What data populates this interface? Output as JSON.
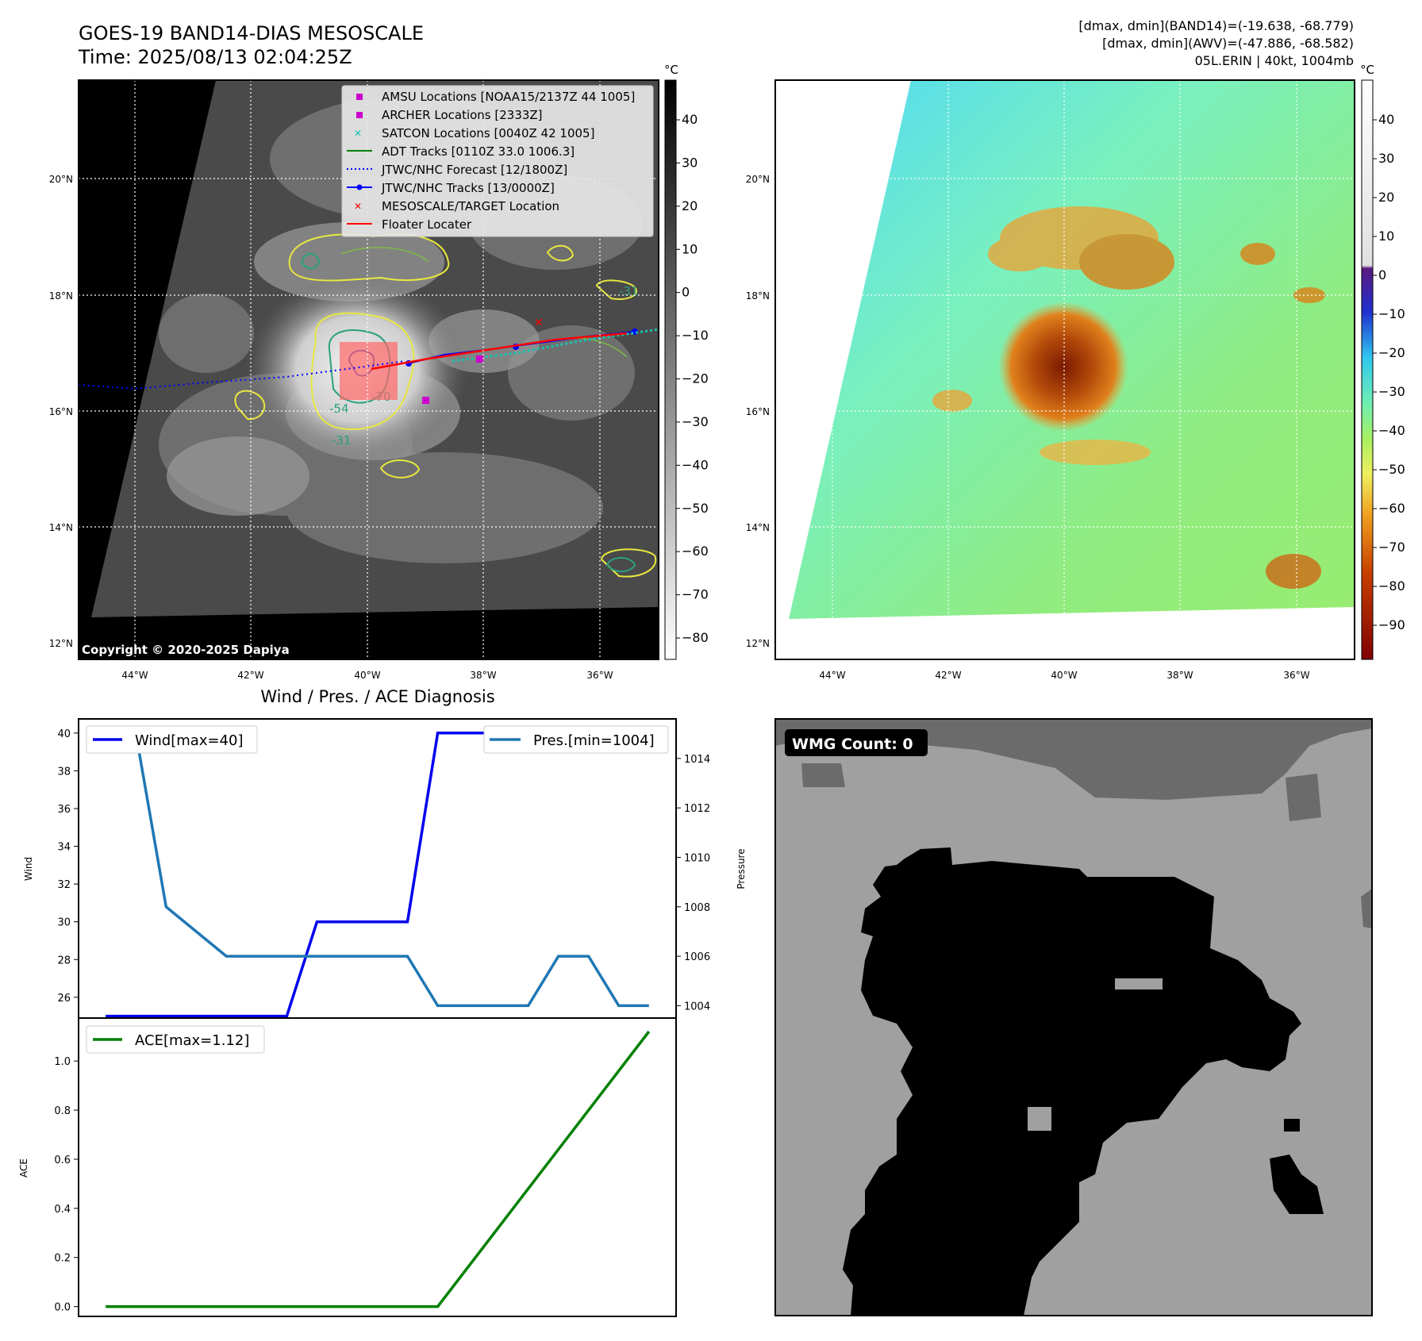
{
  "header": {
    "title_line1": "GOES-19 BAND14-DIAS MESOSCALE",
    "title_line2": "Time: 2025/08/13 02:04:25Z",
    "stats_line1": "[dmax, dmin](BAND14)=(-19.638, -68.779)",
    "stats_line2": "[dmax, dmin](AWV)=(-47.886, -68.582)",
    "stats_line3": "05L.ERIN | 40kt, 1004mb"
  },
  "copyright": "Copyright © 2020-2025 Dapiya",
  "wmg_label": "WMG Count: 0",
  "diag_title": "Wind / Pres. / ACE Diagnosis",
  "colors": {
    "wind": "#0000ee",
    "pressure": "#1f77b4",
    "ace": "#008000",
    "floater": "#ff0000",
    "jtwc": "#0000ff",
    "amsu": "#cc00cc",
    "satcon": "#17c3b2",
    "adt": "#008000"
  },
  "map_axes": {
    "lat_ticks": [
      "12°N",
      "14°N",
      "16°N",
      "18°N",
      "20°N"
    ],
    "lon_ticks": [
      "44°W",
      "42°W",
      "40°W",
      "38°W",
      "36°W"
    ],
    "cbar_unit": "°C",
    "cbar1_ticks": [
      "40",
      "30",
      "20",
      "10",
      "0",
      "−10",
      "−20",
      "−30",
      "−40",
      "−50",
      "−60",
      "−70",
      "−80"
    ],
    "cbar2_ticks": [
      "40",
      "30",
      "20",
      "10",
      "0",
      "−10",
      "−20",
      "−30",
      "−40",
      "−50",
      "−60",
      "−70",
      "−80",
      "−90"
    ],
    "contour_labels": [
      "-54",
      "-31",
      "-70",
      "-31"
    ]
  },
  "legend": [
    {
      "label": "AMSU Locations [NOAA15/2137Z 44 1005]",
      "icon": "magenta-square"
    },
    {
      "label": "ARCHER Locations [2333Z]",
      "icon": "magenta-square"
    },
    {
      "label": "SATCON Locations [0040Z 42 1005]",
      "icon": "cyan-x"
    },
    {
      "label": "ADT Tracks [0110Z 33.0 1006.3]",
      "icon": "green-line"
    },
    {
      "label": "JTWC/NHC Forecast [12/1800Z]",
      "icon": "blue-dotted-line"
    },
    {
      "label": "JTWC/NHC Tracks [13/0000Z]",
      "icon": "blue-line-dot"
    },
    {
      "label": "MESOSCALE/TARGET Location",
      "icon": "red-x"
    },
    {
      "label": "Floater Locater",
      "icon": "red-line"
    }
  ],
  "chart_data": [
    {
      "type": "line",
      "ylabel": "Wind",
      "y2label": "Pressure",
      "ylim": [
        24.9,
        40.75
      ],
      "y2lim": [
        1003.5,
        1015.6
      ],
      "xlim": [
        -0.9,
        18.9
      ],
      "yticks": [
        26,
        28,
        30,
        32,
        34,
        36,
        38,
        40
      ],
      "y2ticks": [
        1004,
        1006,
        1008,
        1010,
        1012,
        1014
      ],
      "series": [
        {
          "name": "Wind[max=40]",
          "axis": "left",
          "x": [
            0,
            1,
            2,
            3,
            4,
            5,
            6,
            7,
            8,
            9,
            10,
            11,
            12,
            13,
            14,
            15,
            16,
            17,
            18
          ],
          "values": [
            25,
            25,
            25,
            25,
            25,
            25,
            25,
            30,
            30,
            30,
            30,
            40,
            40,
            40,
            40,
            40,
            40,
            40,
            40
          ]
        },
        {
          "name": "Pres.[min=1004]",
          "axis": "right",
          "x": [
            0,
            1,
            2,
            3,
            4,
            5,
            6,
            7,
            8,
            9,
            10,
            11,
            12,
            13,
            14,
            15,
            16,
            17,
            18
          ],
          "values": [
            1015,
            1015,
            1008,
            1007,
            1006,
            1006,
            1006,
            1006,
            1006,
            1006,
            1006,
            1004,
            1004,
            1004,
            1004,
            1006,
            1006,
            1004,
            1004
          ]
        }
      ]
    },
    {
      "type": "line",
      "ylabel": "ACE",
      "ylim": [
        -0.04,
        1.175
      ],
      "xlim": [
        -0.9,
        18.9
      ],
      "yticks": [
        "0.0",
        "0.2",
        "0.4",
        "0.6",
        "0.8",
        "1.0"
      ],
      "series": [
        {
          "name": "ACE[max=1.12]",
          "x": [
            0,
            11,
            18
          ],
          "values": [
            0.0,
            0.0,
            1.12
          ]
        }
      ]
    }
  ]
}
